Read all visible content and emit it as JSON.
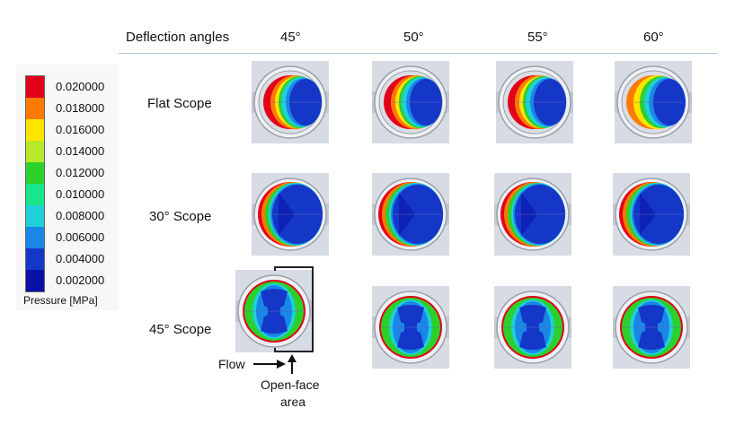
{
  "header": {
    "deflection_label": "Deflection angles",
    "angles": [
      "45°",
      "50°",
      "55°",
      "60°"
    ]
  },
  "rows": [
    "Flat Scope",
    "30° Scope",
    "45° Scope"
  ],
  "legend": {
    "title": "Pressure [MPa]",
    "ticks": [
      "0.020000",
      "0.018000",
      "0.016000",
      "0.014000",
      "0.012000",
      "0.010000",
      "0.008000",
      "0.006000",
      "0.004000",
      "0.002000"
    ],
    "colors": [
      "#e3001b",
      "#ff7a00",
      "#ffe400",
      "#b7e82a",
      "#2bd12b",
      "#19e68a",
      "#1fd0d8",
      "#1a86e6",
      "#1437c8",
      "#0a10a8"
    ]
  },
  "annotations": {
    "flow": "Flow",
    "open_face": [
      "Open-face",
      "area"
    ]
  },
  "colors": {
    "rule": "#a9c3dd",
    "cell_bg": "#d7dbe4",
    "fixture": "#c3c8d0",
    "ring": "#9aa0aa"
  }
}
